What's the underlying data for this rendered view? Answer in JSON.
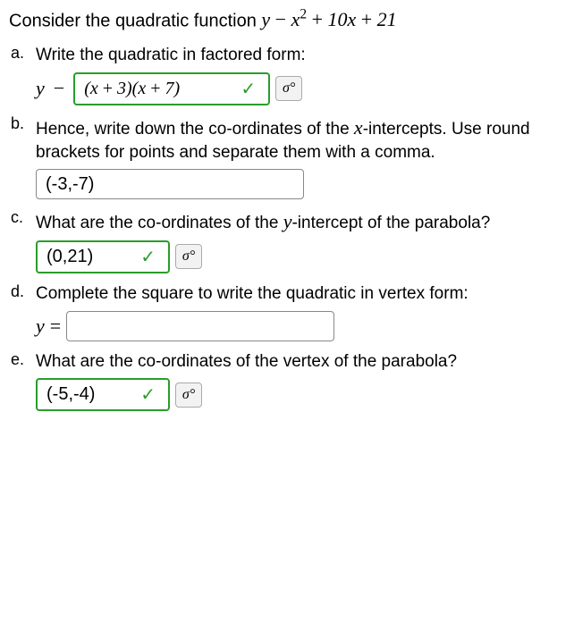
{
  "intro_text": "Consider the quadratic function ",
  "intro_math_html": "y <span class='func'>−</span> x<sup>2</sup> <span class='func'>+</span> 10x <span class='func'>+</span> 21",
  "parts": {
    "a": {
      "letter": "a.",
      "question": "Write the quadratic in factored form:",
      "prefix_y": "y",
      "prefix_dash": "−",
      "answer_html": "(x <span class='func'>+</span> 3)(x <span class='func'>+</span> 7)",
      "correct": true,
      "has_formula_btn": true
    },
    "b": {
      "letter": "b.",
      "question_html": "Hence, write down the co-ordinates of the <span class='mathit'>x</span>-intercepts. Use round brackets for points and separate them with a comma.",
      "answer": "(-3,-7)",
      "correct": false,
      "has_formula_btn": false
    },
    "c": {
      "letter": "c.",
      "question_html": "What are the co-ordinates of the <span class='mathit'>y</span>-intercept of the parabola?",
      "answer": "(0,21)",
      "correct": true,
      "has_formula_btn": true
    },
    "d": {
      "letter": "d.",
      "question": "Complete the square to write the quadratic in vertex form:",
      "prefix_y": "y",
      "prefix_eq": "=",
      "answer": "",
      "correct": false,
      "has_formula_btn": false
    },
    "e": {
      "letter": "e.",
      "question": "What are the co-ordinates of the vertex of the parabola?",
      "answer": "(-5,-4)",
      "correct": true,
      "has_formula_btn": true
    }
  },
  "check_glyph": "✓",
  "formula_glyph": "σ°",
  "colors": {
    "correct_border": "#2a9d2a",
    "check_color": "#2a9d2a",
    "input_border": "#888888",
    "btn_bg": "#f2f2f2",
    "text": "#000000",
    "bg": "#ffffff"
  }
}
